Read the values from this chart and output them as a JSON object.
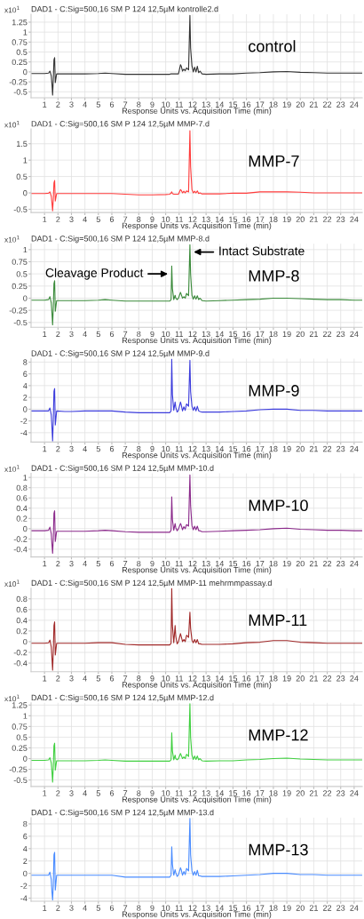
{
  "chart_data": [
    {
      "type": "line",
      "title": "DAD1 - C:Sig=500,16 SM P 124 12,5µM kontrolle2.d",
      "xlabel": "Response Units vs. Acquisition Time (min)",
      "ylabel": "x10$^{1}$",
      "annotations": [
        "control"
      ],
      "grid": true,
      "x": [
        0,
        1,
        1.3,
        1.4,
        1.5,
        1.55,
        1.6,
        1.65,
        1.7,
        1.75,
        1.8,
        1.9,
        2.5,
        3,
        4,
        5,
        5.5,
        6,
        7,
        8,
        9,
        10,
        10.3,
        10.4,
        10.45,
        10.5,
        10.6,
        10.7,
        10.75,
        10.85,
        10.95,
        11.1,
        11.15,
        11.25,
        11.35,
        11.45,
        11.55,
        11.7,
        11.8,
        11.85,
        11.95,
        12.05,
        12.15,
        12.25,
        12.35,
        12.45,
        12.55,
        12.7,
        13,
        14,
        15,
        16,
        17,
        18,
        19,
        20,
        21,
        22,
        23,
        24,
        24.6
      ],
      "series": [
        {
          "color": "#333333",
          "values": [
            -0.04,
            -0.04,
            -0.03,
            0.02,
            -0.1,
            -0.3,
            -0.58,
            -0.2,
            0.3,
            0.36,
            -0.27,
            -0.05,
            -0.05,
            -0.05,
            -0.05,
            -0.04,
            -0.03,
            -0.04,
            -0.06,
            -0.06,
            -0.06,
            -0.06,
            -0.06,
            -0.05,
            -0.05,
            -0.05,
            -0.05,
            -0.05,
            -0.05,
            -0.05,
            -0.05,
            0.18,
            0.15,
            0.02,
            0.07,
            0.03,
            0.1,
            0.05,
            1.42,
            0.6,
            0.15,
            0.0,
            0.12,
            0.0,
            0.14,
            -0.02,
            0.02,
            -0.05,
            -0.06,
            -0.05,
            -0.05,
            -0.03,
            -0.02,
            0.0,
            0.01,
            -0.01,
            -0.02,
            -0.03,
            -0.03,
            -0.03,
            -0.03
          ]
        }
      ],
      "xlim": [
        0,
        24.6
      ],
      "ylim": [
        -0.65,
        1.45
      ],
      "xticks": [
        1,
        2,
        3,
        4,
        5,
        6,
        7,
        8,
        9,
        10,
        11,
        12,
        13,
        14,
        15,
        16,
        17,
        18,
        19,
        20,
        21,
        22,
        23,
        24
      ],
      "yticks": [
        -0.5,
        -0.25,
        0,
        0.25,
        0.5,
        0.75,
        1,
        1.25
      ]
    },
    {
      "type": "line",
      "title": "DAD1 - C:Sig=500,16 SM P 124 12,5µM MMP-7.d",
      "xlabel": "Response Units vs. Acquisition Time (min)",
      "ylabel": "x10$^{1}$",
      "annotations": [
        "MMP-7"
      ],
      "grid": true,
      "x": [
        0,
        1,
        1.3,
        1.4,
        1.5,
        1.55,
        1.6,
        1.65,
        1.7,
        1.75,
        1.8,
        1.9,
        2.5,
        3,
        4,
        5,
        5.5,
        6,
        7,
        8,
        9,
        10,
        10.3,
        10.4,
        10.45,
        10.5,
        10.6,
        10.7,
        10.75,
        10.85,
        10.95,
        11.1,
        11.15,
        11.25,
        11.35,
        11.45,
        11.55,
        11.7,
        11.8,
        11.85,
        11.95,
        12.05,
        12.15,
        12.25,
        12.35,
        12.45,
        12.55,
        12.7,
        13,
        14,
        15,
        16,
        17,
        18,
        19,
        20,
        21,
        22,
        23,
        24,
        24.6
      ],
      "series": [
        {
          "color": "#ff3b3b",
          "values": [
            -0.02,
            -0.02,
            -0.01,
            0.03,
            -0.1,
            -0.3,
            -0.55,
            -0.2,
            0.3,
            0.38,
            -0.25,
            -0.02,
            -0.02,
            -0.02,
            -0.02,
            -0.02,
            -0.02,
            -0.02,
            -0.04,
            -0.06,
            -0.06,
            -0.05,
            -0.04,
            0.0,
            0.03,
            -0.02,
            -0.04,
            -0.04,
            -0.04,
            -0.04,
            -0.04,
            0.1,
            0.08,
            0.0,
            0.05,
            0.0,
            0.06,
            0.03,
            1.9,
            0.8,
            0.1,
            0.0,
            0.05,
            0.0,
            0.06,
            -0.02,
            0.0,
            -0.03,
            -0.03,
            -0.03,
            -0.01,
            -0.01,
            0.03,
            0.03,
            0.03,
            0.02,
            0.0,
            0.0,
            0.0,
            0.0,
            0.0
          ]
        }
      ],
      "xlim": [
        0,
        24.6
      ],
      "ylim": [
        -0.6,
        1.95
      ],
      "xticks": [
        1,
        2,
        3,
        4,
        5,
        6,
        7,
        8,
        9,
        10,
        11,
        12,
        13,
        14,
        15,
        16,
        17,
        18,
        19,
        20,
        21,
        22,
        23,
        24
      ],
      "yticks": [
        -0.5,
        0,
        0.5,
        1,
        1.5
      ]
    },
    {
      "type": "line",
      "title": "DAD1 - C:Sig=500,16 SM P 124 12,5µM MMP-8.d",
      "xlabel": "Response Units vs. Acquisition Time (min)",
      "ylabel": "x10$^{1}$",
      "annotations": [
        "MMP-8",
        {
          "text": "Cleavage Product",
          "x": 10.35,
          "y": 0.5
        },
        {
          "text": "Intact Substrate",
          "x": 11.9,
          "y": 0.95
        }
      ],
      "grid": true,
      "x": [
        0,
        1,
        1.3,
        1.4,
        1.5,
        1.55,
        1.6,
        1.65,
        1.7,
        1.75,
        1.8,
        1.9,
        2.5,
        3,
        4,
        5,
        5.5,
        6,
        7,
        8,
        9,
        10,
        10.3,
        10.4,
        10.45,
        10.5,
        10.6,
        10.7,
        10.75,
        10.85,
        10.95,
        11.1,
        11.15,
        11.25,
        11.35,
        11.45,
        11.55,
        11.7,
        11.8,
        11.85,
        11.95,
        12.05,
        12.15,
        12.25,
        12.35,
        12.45,
        12.55,
        12.7,
        13,
        14,
        15,
        16,
        17,
        18,
        19,
        20,
        21,
        22,
        23,
        24,
        24.6
      ],
      "series": [
        {
          "color": "#3a8a3a",
          "values": [
            -0.04,
            -0.04,
            -0.03,
            0.03,
            -0.1,
            -0.3,
            -0.55,
            -0.2,
            0.3,
            0.36,
            -0.27,
            -0.05,
            -0.05,
            -0.05,
            -0.05,
            -0.04,
            -0.03,
            -0.04,
            -0.06,
            -0.06,
            -0.06,
            -0.06,
            -0.06,
            -0.03,
            0.66,
            0.2,
            -0.03,
            0.06,
            0.0,
            -0.03,
            0.0,
            0.12,
            0.08,
            0.0,
            0.03,
            0.0,
            0.1,
            0.05,
            1.1,
            0.5,
            0.06,
            -0.02,
            0.05,
            -0.02,
            0.05,
            -0.03,
            0.0,
            -0.05,
            -0.06,
            -0.05,
            -0.04,
            -0.03,
            -0.02,
            0.0,
            0.0,
            -0.01,
            -0.02,
            -0.03,
            -0.03,
            -0.04,
            -0.04
          ]
        }
      ],
      "xlim": [
        0,
        24.6
      ],
      "ylim": [
        -0.6,
        1.12
      ],
      "xticks": [
        1,
        2,
        3,
        4,
        5,
        6,
        7,
        8,
        9,
        10,
        11,
        12,
        13,
        14,
        15,
        16,
        17,
        18,
        19,
        20,
        21,
        22,
        23,
        24
      ],
      "yticks": [
        -0.5,
        -0.25,
        0,
        0.25,
        0.5,
        0.75,
        1
      ]
    },
    {
      "type": "line",
      "title": "DAD1 - C:Sig=500,16 SM P 124 12,5µM MMP-9.d",
      "xlabel": "Response Units vs. Acquisition Time (min)",
      "annotations": [
        "MMP-9"
      ],
      "grid": true,
      "x": [
        0,
        1,
        1.3,
        1.4,
        1.5,
        1.55,
        1.6,
        1.65,
        1.7,
        1.75,
        1.8,
        1.9,
        2.5,
        3,
        4,
        5,
        5.5,
        6,
        7,
        8,
        9,
        10,
        10.3,
        10.4,
        10.45,
        10.5,
        10.6,
        10.7,
        10.75,
        10.85,
        10.95,
        11.1,
        11.15,
        11.25,
        11.35,
        11.45,
        11.55,
        11.7,
        11.8,
        11.85,
        11.95,
        12.05,
        12.15,
        12.25,
        12.35,
        12.45,
        12.55,
        12.7,
        13,
        14,
        15,
        16,
        17,
        18,
        19,
        20,
        21,
        22,
        23,
        24,
        24.6
      ],
      "series": [
        {
          "color": "#3c3cdc",
          "values": [
            -0.3,
            -0.3,
            -0.3,
            0.2,
            -1.0,
            -3.0,
            -5.4,
            -2.0,
            3.0,
            3.5,
            -2.7,
            -0.3,
            -0.4,
            -0.4,
            -0.3,
            -0.3,
            -0.3,
            -0.3,
            -0.5,
            -0.6,
            -0.6,
            -0.6,
            -0.6,
            -0.3,
            8.5,
            2.5,
            -0.2,
            1.2,
            0.3,
            -0.5,
            -0.2,
            1.2,
            0.8,
            -0.3,
            0.4,
            -0.2,
            0.9,
            0.5,
            8.3,
            3.0,
            0.5,
            -0.2,
            0.4,
            -0.3,
            0.5,
            -0.3,
            -0.4,
            -0.5,
            -0.5,
            -0.5,
            -0.4,
            -0.3,
            -0.1,
            0.0,
            0.0,
            -0.2,
            -0.2,
            -0.3,
            -0.3,
            -0.3,
            -0.3
          ]
        }
      ],
      "xlim": [
        0,
        24.6
      ],
      "ylim": [
        -5.6,
        8.6
      ],
      "xticks": [
        1,
        2,
        3,
        4,
        5,
        6,
        7,
        8,
        9,
        10,
        11,
        12,
        13,
        14,
        15,
        16,
        17,
        18,
        19,
        20,
        21,
        22,
        23,
        24
      ],
      "yticks": [
        -4,
        -2,
        0,
        2,
        4,
        6,
        8
      ]
    },
    {
      "type": "line",
      "title": "DAD1 - C:Sig=500,16 SM P 124 12,5µM MMP-10.d",
      "xlabel": "Response Units vs. Acquisition Time (min)",
      "ylabel": "x10$^{1}$",
      "annotations": [
        "MMP-10"
      ],
      "grid": true,
      "x": [
        0,
        1,
        1.3,
        1.4,
        1.5,
        1.55,
        1.6,
        1.65,
        1.7,
        1.75,
        1.8,
        1.9,
        2.5,
        3,
        4,
        5,
        5.5,
        6,
        7,
        8,
        9,
        10,
        10.3,
        10.4,
        10.45,
        10.5,
        10.6,
        10.7,
        10.75,
        10.85,
        10.95,
        11.1,
        11.15,
        11.25,
        11.35,
        11.45,
        11.55,
        11.7,
        11.8,
        11.85,
        11.95,
        12.05,
        12.15,
        12.25,
        12.35,
        12.45,
        12.55,
        12.7,
        13,
        14,
        15,
        16,
        17,
        18,
        19,
        20,
        21,
        22,
        23,
        24,
        24.6
      ],
      "series": [
        {
          "color": "#8b2a8b",
          "values": [
            -0.04,
            -0.04,
            -0.03,
            0.03,
            -0.1,
            -0.3,
            -0.48,
            -0.2,
            0.3,
            0.35,
            -0.25,
            -0.05,
            -0.05,
            -0.05,
            -0.05,
            -0.04,
            -0.03,
            -0.04,
            -0.06,
            -0.07,
            -0.07,
            -0.07,
            -0.07,
            -0.03,
            0.62,
            0.18,
            -0.03,
            0.1,
            0.02,
            -0.04,
            0.0,
            0.1,
            0.07,
            -0.02,
            0.04,
            0.0,
            0.08,
            0.05,
            1.05,
            0.45,
            0.06,
            -0.02,
            0.05,
            -0.02,
            0.05,
            -0.04,
            -0.04,
            -0.06,
            -0.06,
            -0.05,
            -0.04,
            -0.03,
            -0.02,
            0.0,
            0.01,
            -0.01,
            -0.02,
            -0.03,
            -0.03,
            -0.04,
            -0.04
          ]
        }
      ],
      "xlim": [
        0,
        24.6
      ],
      "ylim": [
        -0.55,
        1.08
      ],
      "xticks": [
        1,
        2,
        3,
        4,
        5,
        6,
        7,
        8,
        9,
        10,
        11,
        12,
        13,
        14,
        15,
        16,
        17,
        18,
        19,
        20,
        21,
        22,
        23,
        24
      ],
      "yticks": [
        -0.4,
        -0.2,
        0,
        0.2,
        0.4,
        0.6,
        0.8,
        1
      ]
    },
    {
      "type": "line",
      "title": "DAD1 - C:Sig=500,16 SM P 124 12,5µM MMP-11 mehrmmpassay.d",
      "xlabel": "Response Units vs. Acquisition Time (min)",
      "ylabel": "x10$^{1}$",
      "annotations": [
        "MMP-11"
      ],
      "grid": true,
      "x": [
        0,
        1,
        1.3,
        1.4,
        1.5,
        1.55,
        1.6,
        1.65,
        1.7,
        1.75,
        1.8,
        1.9,
        2.5,
        3,
        4,
        5,
        5.5,
        6,
        7,
        8,
        9,
        10,
        10.3,
        10.4,
        10.45,
        10.5,
        10.6,
        10.7,
        10.75,
        10.85,
        10.95,
        11.1,
        11.15,
        11.25,
        11.35,
        11.45,
        11.55,
        11.7,
        11.8,
        11.85,
        11.95,
        12.05,
        12.15,
        12.25,
        12.35,
        12.45,
        12.55,
        12.7,
        13,
        14,
        15,
        16,
        17,
        18,
        19,
        20,
        21,
        22,
        23,
        24,
        24.6
      ],
      "series": [
        {
          "color": "#a02828",
          "values": [
            -0.03,
            -0.03,
            -0.02,
            0.03,
            -0.1,
            -0.3,
            -0.53,
            -0.2,
            0.3,
            0.37,
            -0.25,
            -0.03,
            -0.03,
            -0.03,
            -0.03,
            -0.02,
            -0.02,
            -0.02,
            -0.05,
            -0.06,
            -0.06,
            -0.06,
            -0.06,
            -0.03,
            1.0,
            0.3,
            -0.02,
            0.3,
            0.1,
            -0.04,
            0.0,
            0.15,
            0.1,
            0.0,
            0.04,
            0.0,
            0.12,
            0.08,
            0.55,
            0.25,
            0.03,
            -0.02,
            0.04,
            -0.02,
            0.04,
            -0.04,
            -0.04,
            -0.05,
            -0.05,
            -0.05,
            -0.04,
            -0.02,
            -0.01,
            0.02,
            0.02,
            -0.01,
            -0.02,
            -0.03,
            -0.03,
            -0.03,
            -0.03
          ]
        }
      ],
      "xlim": [
        0,
        24.6
      ],
      "ylim": [
        -0.56,
        1.0
      ],
      "xticks": [
        1,
        2,
        3,
        4,
        5,
        6,
        7,
        8,
        9,
        10,
        11,
        12,
        13,
        14,
        15,
        16,
        17,
        18,
        19,
        20,
        21,
        22,
        23,
        24
      ],
      "yticks": [
        -0.4,
        -0.2,
        0,
        0.2,
        0.4,
        0.6,
        0.8
      ]
    },
    {
      "type": "line",
      "title": "DAD1 - C:Sig=500,16 SM P 124 12,5µM MMP-12.d",
      "xlabel": "Response Units vs. Acquisition Time (min)",
      "ylabel": "x10$^{1}$",
      "annotations": [
        "MMP-12"
      ],
      "grid": true,
      "x": [
        0,
        1,
        1.3,
        1.4,
        1.5,
        1.55,
        1.6,
        1.65,
        1.7,
        1.75,
        1.8,
        1.9,
        2.5,
        3,
        4,
        5,
        5.5,
        6,
        7,
        8,
        9,
        10,
        10.3,
        10.4,
        10.45,
        10.5,
        10.6,
        10.7,
        10.75,
        10.85,
        10.95,
        11.1,
        11.15,
        11.25,
        11.35,
        11.45,
        11.55,
        11.7,
        11.8,
        11.85,
        11.95,
        12.05,
        12.15,
        12.25,
        12.35,
        12.45,
        12.55,
        12.7,
        13,
        14,
        15,
        16,
        17,
        18,
        19,
        20,
        21,
        22,
        23,
        24,
        24.6
      ],
      "series": [
        {
          "color": "#3fcf3f",
          "values": [
            -0.04,
            -0.04,
            -0.03,
            0.02,
            -0.1,
            -0.3,
            -0.55,
            -0.2,
            0.3,
            0.36,
            -0.27,
            -0.05,
            -0.05,
            -0.05,
            -0.05,
            -0.04,
            -0.03,
            -0.04,
            -0.06,
            -0.06,
            -0.06,
            -0.06,
            -0.06,
            -0.03,
            0.6,
            0.18,
            -0.03,
            0.08,
            0.0,
            -0.03,
            0.0,
            0.12,
            0.08,
            0.0,
            0.04,
            0.0,
            0.1,
            0.05,
            1.28,
            0.5,
            0.08,
            -0.02,
            0.06,
            -0.02,
            0.06,
            -0.03,
            0.0,
            -0.05,
            -0.06,
            -0.05,
            -0.05,
            -0.03,
            -0.02,
            0.0,
            0.01,
            -0.01,
            -0.02,
            -0.03,
            -0.03,
            -0.03,
            -0.03
          ]
        }
      ],
      "xlim": [
        0,
        24.6
      ],
      "ylim": [
        -0.65,
        1.3
      ],
      "xticks": [
        1,
        2,
        3,
        4,
        5,
        6,
        7,
        8,
        9,
        10,
        11,
        12,
        13,
        14,
        15,
        16,
        17,
        18,
        19,
        20,
        21,
        22,
        23,
        24
      ],
      "yticks": [
        -0.5,
        -0.25,
        0,
        0.25,
        0.5,
        0.75,
        1,
        1.25
      ]
    },
    {
      "type": "line",
      "title": "DAD1 - C:Sig=500,16 SM P 124 12,5µM MMP-13.d",
      "xlabel": "Response Units vs. Acquisition Time (min)",
      "annotations": [
        "MMP-13"
      ],
      "grid": true,
      "x": [
        0,
        1,
        1.3,
        1.4,
        1.5,
        1.55,
        1.6,
        1.65,
        1.7,
        1.75,
        1.8,
        1.9,
        2.5,
        3,
        4,
        5,
        5.5,
        6,
        7,
        8,
        9,
        10,
        10.3,
        10.4,
        10.45,
        10.5,
        10.6,
        10.7,
        10.75,
        10.85,
        10.95,
        11.1,
        11.15,
        11.25,
        11.35,
        11.45,
        11.55,
        11.7,
        11.8,
        11.85,
        11.95,
        12.05,
        12.15,
        12.25,
        12.35,
        12.45,
        12.55,
        12.7,
        13,
        14,
        15,
        16,
        17,
        18,
        19,
        20,
        21,
        22,
        23,
        24,
        24.6
      ],
      "series": [
        {
          "color": "#4a8cff",
          "values": [
            -0.3,
            -0.3,
            -0.3,
            0.2,
            -1.0,
            -3.0,
            -4.3,
            -2.0,
            3.0,
            3.4,
            -2.7,
            -0.3,
            -0.3,
            -0.3,
            -0.3,
            -0.3,
            -0.3,
            -0.3,
            -0.6,
            -0.6,
            -0.6,
            -0.6,
            -0.6,
            -0.3,
            4.3,
            1.5,
            -0.3,
            0.6,
            0.1,
            -0.5,
            -0.2,
            0.9,
            0.6,
            -0.3,
            0.3,
            -0.2,
            0.8,
            0.4,
            8.9,
            3.0,
            0.4,
            -0.3,
            0.3,
            -0.3,
            0.5,
            -0.4,
            -0.4,
            -0.5,
            -0.5,
            -0.5,
            -0.4,
            -0.3,
            -0.2,
            0.0,
            0.0,
            -0.2,
            -0.2,
            -0.3,
            -0.3,
            -0.3,
            -0.3
          ]
        }
      ],
      "xlim": [
        0,
        24.6
      ],
      "ylim": [
        -4.5,
        9
      ],
      "xticks": [
        1,
        2,
        3,
        4,
        5,
        6,
        7,
        8,
        9,
        10,
        11,
        12,
        13,
        14,
        15,
        16,
        17,
        18,
        19,
        20,
        21,
        22,
        23,
        24
      ],
      "yticks": [
        -4,
        -2,
        0,
        2,
        4,
        6,
        8
      ]
    }
  ]
}
